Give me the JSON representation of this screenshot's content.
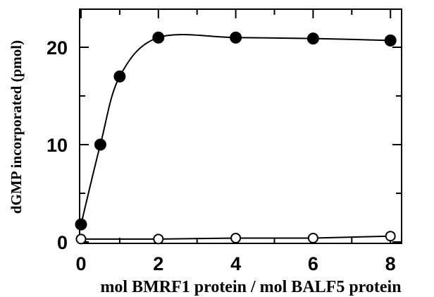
{
  "chart_data": {
    "type": "scatter",
    "title": "",
    "xlabel": "mol BMRF1 protein / mol BALF5 protein",
    "ylabel": "dGMP incorporated  (pmol)",
    "xlim": [
      0,
      9
    ],
    "ylim": [
      0,
      24
    ],
    "xticks": [
      0,
      2,
      4,
      6,
      8
    ],
    "yticks": [
      0,
      10,
      20
    ],
    "grid": false,
    "legend": "none",
    "series": [
      {
        "marker": "filled-circle",
        "line": "curve",
        "x": [
          0,
          0.5,
          1,
          2,
          4,
          6,
          8
        ],
        "y": [
          1.8,
          10,
          17,
          21,
          21,
          20.9,
          20.7
        ]
      },
      {
        "marker": "open-circle",
        "line": "straight",
        "x": [
          0,
          2,
          4,
          6,
          8
        ],
        "y": [
          0.3,
          0.3,
          0.4,
          0.4,
          0.6
        ]
      }
    ]
  }
}
